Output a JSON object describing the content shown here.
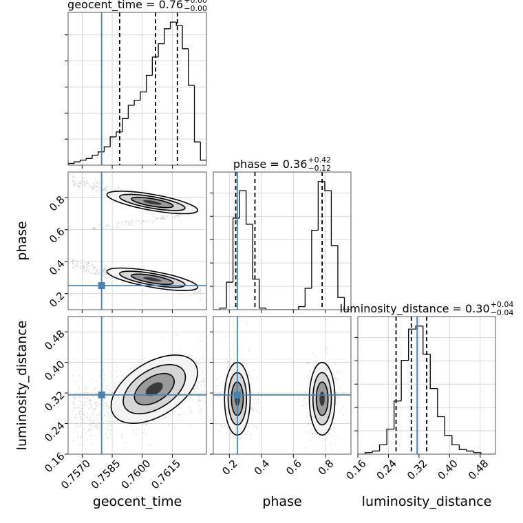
{
  "chart_data": {
    "type": "scatter",
    "kind": "corner",
    "parameters": [
      "geocent_time",
      "phase",
      "luminosity_distance"
    ],
    "titles": [
      {
        "param": "geocent_time",
        "label": "geocent_time",
        "median": "0.76",
        "plus": "+0.00",
        "minus": "−0.00"
      },
      {
        "param": "phase",
        "label": "phase",
        "median": "0.36",
        "plus": "+0.42",
        "minus": "−0.12"
      },
      {
        "param": "luminosity_distance",
        "label": "luminosity_distance",
        "median": "0.30",
        "plus": "+0.04",
        "minus": "−0.04"
      }
    ],
    "ranges": {
      "geocent_time": [
        0.7563,
        0.7632
      ],
      "phase": [
        0.1,
        0.96
      ],
      "luminosity_distance": [
        0.16,
        0.52
      ]
    },
    "ticks": {
      "geocent_time": {
        "values": [
          0.757,
          0.7585,
          0.76,
          0.7615
        ],
        "labels": [
          "0.7570",
          "0.7585",
          "0.7600",
          "0.7615"
        ]
      },
      "phase": {
        "values": [
          0.2,
          0.4,
          0.6,
          0.8
        ],
        "labels": [
          "0.2",
          "0.4",
          "0.6",
          "0.8"
        ]
      },
      "luminosity_distance": {
        "values": [
          0.16,
          0.24,
          0.32,
          0.4,
          0.48
        ],
        "labels": [
          "0.16",
          "0.24",
          "0.32",
          "0.40",
          "0.48"
        ]
      }
    },
    "truths": {
      "geocent_time": 0.75797,
      "phase": 0.25,
      "luminosity_distance": 0.315
    },
    "quantiles": {
      "geocent_time": [
        0.75887,
        0.76066,
        0.76175
      ],
      "phase": [
        0.24,
        0.36,
        0.78
      ],
      "luminosity_distance": [
        0.26,
        0.3,
        0.34
      ]
    },
    "histograms": {
      "geocent_time": {
        "range": [
          0.7563,
          0.7632
        ],
        "counts": [
          1,
          2,
          3,
          4,
          6,
          8,
          11,
          17,
          20,
          28,
          36,
          39,
          44,
          54,
          65,
          73,
          82,
          86,
          84,
          70,
          48,
          14,
          3
        ]
      },
      "phase": {
        "range": [
          0.1,
          0.96
        ],
        "counts": [
          0,
          1,
          18,
          60,
          78,
          56,
          20,
          1,
          0,
          0,
          0,
          0,
          0,
          2,
          14,
          52,
          84,
          78,
          42,
          8,
          0
        ]
      },
      "luminosity_distance": {
        "range": [
          0.16,
          0.52
        ],
        "counts": [
          0,
          1,
          2,
          6,
          16,
          34,
          60,
          80,
          82,
          64,
          42,
          24,
          12,
          6,
          3,
          2,
          1,
          0,
          0
        ]
      }
    },
    "axis_labels": {
      "x": [
        "geocent_time",
        "phase",
        "luminosity_distance"
      ],
      "y": [
        "phase",
        "luminosity_distance"
      ]
    },
    "grid": true,
    "colors": {
      "truth": "#4682b4",
      "hist": "#000000",
      "quantile": "#000000",
      "grid": "#cccccc",
      "samples": "#808080"
    }
  }
}
